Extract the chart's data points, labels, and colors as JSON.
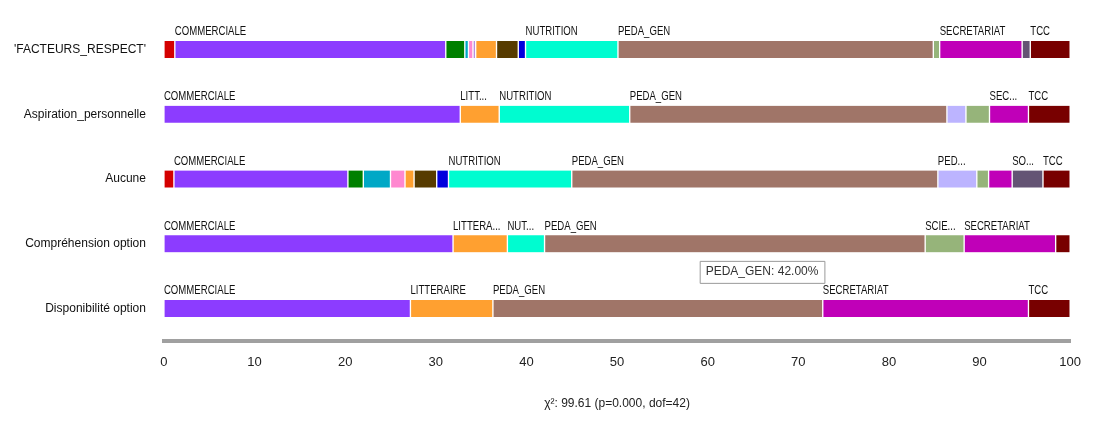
{
  "chart_data": {
    "type": "bar",
    "orientation": "horizontal",
    "stacked": true,
    "xlabel": "χ²: 99.61 (p=0.000, dof=42)",
    "categories": [
      "'FACTEURS_RESPECT'",
      "Aspiration_personnelle",
      "Aucune",
      "Compréhension option",
      "Disponibilité option"
    ],
    "xlim": [
      0,
      100
    ],
    "xticks": [
      0,
      10,
      20,
      30,
      40,
      50,
      60,
      70,
      80,
      90,
      100
    ],
    "grid": false,
    "legend": false,
    "series": [
      {
        "color": "#d40000",
        "values": [
          1.2,
          null,
          1.1,
          null,
          null
        ]
      },
      {
        "color": "#8c3cff",
        "values": [
          29.9,
          32.7,
          19.2,
          31.9,
          27.2
        ],
        "value_labels": [
          "COMMERCIALE",
          "COMMERCIALE",
          "COMMERCIALE",
          "COMMERCIALE",
          "COMMERCIALE"
        ]
      },
      {
        "color": "#008000",
        "values": [
          2.1,
          null,
          1.7,
          null,
          null
        ]
      },
      {
        "color": "#00a8c6",
        "values": [
          0.4,
          null,
          3.0,
          null,
          null
        ]
      },
      {
        "color": "#ff88d0",
        "values": [
          0.5,
          null,
          1.6,
          null,
          null
        ]
      },
      {
        "color": "#b890e0",
        "values": [
          0.3,
          null,
          null,
          null,
          null
        ]
      },
      {
        "color": "#ffa030",
        "values": [
          2.3,
          4.3,
          1.0,
          6.0,
          9.1
        ],
        "value_labels": [
          null,
          "LITT...",
          null,
          "LITTERA...",
          "LITTERAIRE"
        ]
      },
      {
        "color": "#573b00",
        "values": [
          2.4,
          null,
          2.5,
          null,
          null
        ]
      },
      {
        "color": "#0000dd",
        "values": [
          0.8,
          null,
          1.3,
          null,
          null
        ]
      },
      {
        "color": "#00fcd0",
        "values": [
          10.2,
          14.4,
          13.6,
          4.1,
          null
        ],
        "value_labels": [
          "NUTRITION",
          "NUTRITION",
          "NUTRITION",
          "NUT...",
          null
        ]
      },
      {
        "color": "#a07568",
        "values": [
          34.8,
          35.0,
          40.4,
          42.0,
          36.4
        ],
        "value_labels": [
          "PEDA_GEN",
          "PEDA_GEN",
          "PEDA_GEN",
          "PEDA_GEN",
          "PEDA_GEN"
        ]
      },
      {
        "color": "#bcb4ff",
        "values": [
          null,
          2.1,
          4.3,
          null,
          null
        ],
        "value_labels": [
          null,
          null,
          "PED...",
          null,
          null
        ]
      },
      {
        "color": "#96b47a",
        "values": [
          0.7,
          2.6,
          1.3,
          4.3,
          null
        ],
        "value_labels": [
          null,
          null,
          null,
          "SCIE...",
          null
        ]
      },
      {
        "color": "#c000b8",
        "values": [
          9.1,
          4.3,
          2.6,
          10.1,
          22.7
        ],
        "value_labels": [
          "SECRETARIAT",
          "SEC...",
          null,
          "SECRETARIAT",
          "SECRETARIAT"
        ]
      },
      {
        "color": "#645474",
        "values": [
          0.9,
          null,
          3.4,
          null,
          null
        ],
        "value_labels": [
          null,
          null,
          "SO...",
          null,
          null
        ]
      },
      {
        "color": "#780000",
        "values": [
          4.4,
          4.6,
          3.0,
          1.6,
          4.6
        ],
        "value_labels": [
          "TCC",
          "TCC",
          "TCC",
          null,
          "TCC"
        ]
      }
    ],
    "annotations": [
      "PEDA_GEN: 42.00%"
    ]
  }
}
